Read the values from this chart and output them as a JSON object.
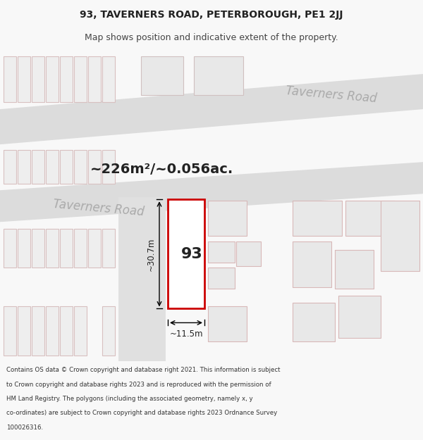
{
  "title_line1": "93, TAVERNERS ROAD, PETERBOROUGH, PE1 2JJ",
  "title_line2": "Map shows position and indicative extent of the property.",
  "area_label": "~226m²/~0.056ac.",
  "road_label_lower": "Taverners Road",
  "road_label_upper": "Taverners Road",
  "property_number": "93",
  "dim_height": "~30.7m",
  "dim_width": "~11.5m",
  "footer_lines": [
    "Contains OS data © Crown copyright and database right 2021. This information is subject",
    "to Crown copyright and database rights 2023 and is reproduced with the permission of",
    "HM Land Registry. The polygons (including the associated geometry, namely x, y",
    "co-ordinates) are subject to Crown copyright and database rights 2023 Ordnance Survey",
    "100026316."
  ],
  "highlight_color": "#cc0000",
  "title_fontsize": 10,
  "subtitle_fontsize": 9,
  "area_fontsize": 14,
  "road_fontsize": 13,
  "number_fontsize": 16,
  "dim_fontsize": 8.5,
  "footer_fontsize": 6.2
}
